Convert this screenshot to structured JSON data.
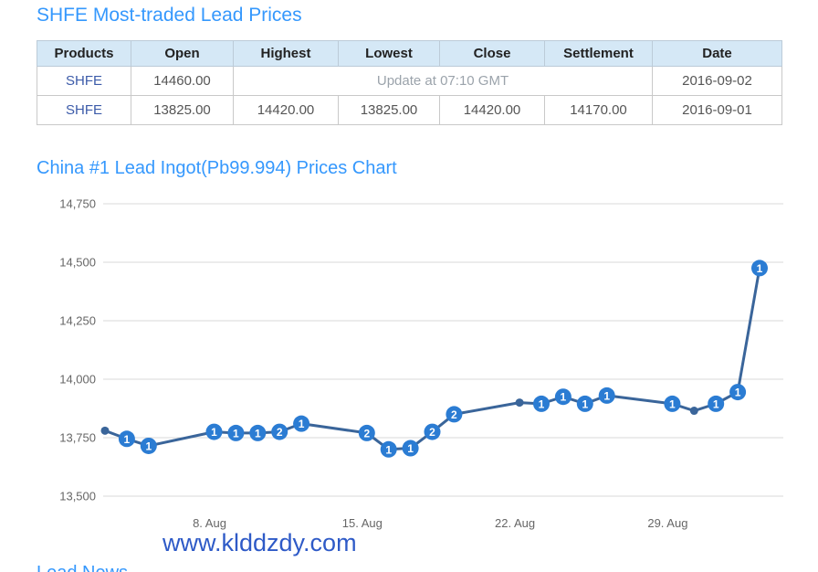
{
  "page": {
    "table_title": "SHFE Most-traded Lead Prices",
    "chart_title": "China #1 Lead Ingot(Pb99.994) Prices Chart",
    "watermark": "www.klddzdy.com",
    "bottom_heading": "Lead News"
  },
  "table": {
    "headers": [
      "Products",
      "Open",
      "Highest",
      "Lowest",
      "Close",
      "Settlement",
      "Date"
    ],
    "rows": [
      {
        "product": "SHFE",
        "open": "14460.00",
        "update_notice": "Update at 07:10 GMT",
        "date": "2016-09-02"
      },
      {
        "product": "SHFE",
        "open": "13825.00",
        "highest": "14420.00",
        "lowest": "13825.00",
        "close": "14420.00",
        "settlement": "14170.00",
        "date": "2016-09-01"
      }
    ]
  },
  "chart_data": {
    "type": "line",
    "title": "China #1 Lead Ingot(Pb99.994) Prices Chart",
    "ylabel": "",
    "xlabel": "",
    "ylim": [
      13500,
      14750
    ],
    "ytick_step": 250,
    "grid": true,
    "legend": "none",
    "xlim_days": [
      2,
      32
    ],
    "xticks": [
      {
        "label": "8. Aug",
        "day": 7
      },
      {
        "label": "15. Aug",
        "day": 14
      },
      {
        "label": "22. Aug",
        "day": 21
      },
      {
        "label": "29. Aug",
        "day": 28
      }
    ],
    "series": [
      {
        "name": "China #1 Lead Ingot(Pb99.994)",
        "points": [
          {
            "date": "2016-08-03",
            "day": 2,
            "value": 13780,
            "label": null
          },
          {
            "date": "2016-08-04",
            "day": 3,
            "value": 13745,
            "label": "1"
          },
          {
            "date": "2016-08-05",
            "day": 4,
            "value": 13715,
            "label": "1"
          },
          {
            "date": "2016-08-08",
            "day": 7,
            "value": 13775,
            "label": "1"
          },
          {
            "date": "2016-08-09",
            "day": 8,
            "value": 13770,
            "label": "1"
          },
          {
            "date": "2016-08-10",
            "day": 9,
            "value": 13770,
            "label": "1"
          },
          {
            "date": "2016-08-11",
            "day": 10,
            "value": 13775,
            "label": "2"
          },
          {
            "date": "2016-08-12",
            "day": 11,
            "value": 13810,
            "label": "1"
          },
          {
            "date": "2016-08-15",
            "day": 14,
            "value": 13770,
            "label": "2"
          },
          {
            "date": "2016-08-16",
            "day": 15,
            "value": 13700,
            "label": "1"
          },
          {
            "date": "2016-08-17",
            "day": 16,
            "value": 13705,
            "label": "1"
          },
          {
            "date": "2016-08-18",
            "day": 17,
            "value": 13775,
            "label": "2"
          },
          {
            "date": "2016-08-19",
            "day": 18,
            "value": 13850,
            "label": "2"
          },
          {
            "date": "2016-08-22",
            "day": 21,
            "value": 13900,
            "label": null
          },
          {
            "date": "2016-08-23",
            "day": 22,
            "value": 13895,
            "label": "1"
          },
          {
            "date": "2016-08-24",
            "day": 23,
            "value": 13925,
            "label": "1"
          },
          {
            "date": "2016-08-25",
            "day": 24,
            "value": 13895,
            "label": "1"
          },
          {
            "date": "2016-08-26",
            "day": 25,
            "value": 13930,
            "label": "1"
          },
          {
            "date": "2016-08-29",
            "day": 28,
            "value": 13895,
            "label": "1"
          },
          {
            "date": "2016-08-30",
            "day": 29,
            "value": 13865,
            "label": null
          },
          {
            "date": "2016-08-31",
            "day": 30,
            "value": 13895,
            "label": "1"
          },
          {
            "date": "2016-09-01",
            "day": 31,
            "value": 13945,
            "label": "1"
          },
          {
            "date": "2016-09-02",
            "day": 32,
            "value": 14475,
            "label": "1"
          }
        ]
      }
    ],
    "colors": {
      "line": "#3a659a",
      "marker_fill": "#2b7cd3",
      "marker_text": "#ffffff",
      "small_dot": "#3a659a",
      "grid": "#d8d8d8",
      "axis_label": "#666666"
    }
  }
}
